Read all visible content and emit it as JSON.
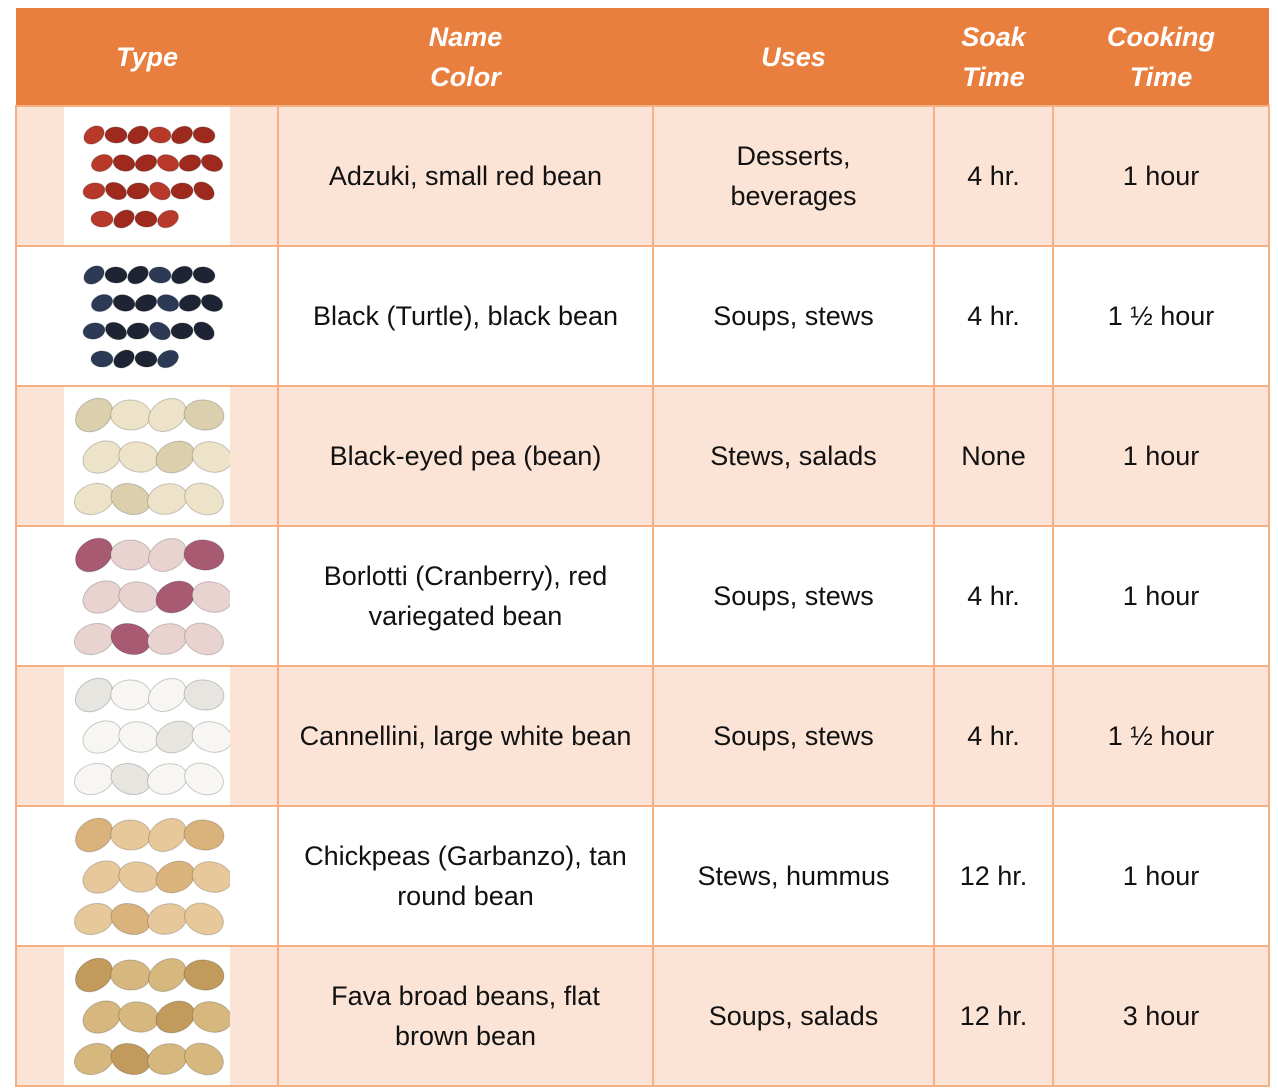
{
  "table": {
    "header": [
      [
        "Type"
      ],
      [
        "Name",
        "Color"
      ],
      [
        "Uses"
      ],
      [
        "Soak",
        "Time"
      ],
      [
        "Cooking",
        "Time"
      ]
    ],
    "rows": [
      [
        "Adzuki, small red bean",
        "Desserts, beverages",
        "4 hr.",
        "1 hour"
      ],
      [
        "Black (Turtle), black bean",
        "Soups, stews",
        "4 hr.",
        "1 ½ hour"
      ],
      [
        "Black-eyed pea (bean)",
        "Stews, salads",
        "None",
        "1 hour"
      ],
      [
        "Borlotti (Cranberry), red variegated bean",
        "Soups, stews",
        "4 hr.",
        "1 hour"
      ],
      [
        "Cannellini, large white bean",
        "Soups, stews",
        "4 hr.",
        "1 ½ hour"
      ],
      [
        "Chickpeas (Garbanzo), tan round bean",
        "Stews, hummus",
        "12 hr.",
        "1 hour"
      ],
      [
        "Fava broad beans, flat brown bean",
        "Soups, salads",
        "12 hr.",
        "3 hour"
      ]
    ]
  }
}
